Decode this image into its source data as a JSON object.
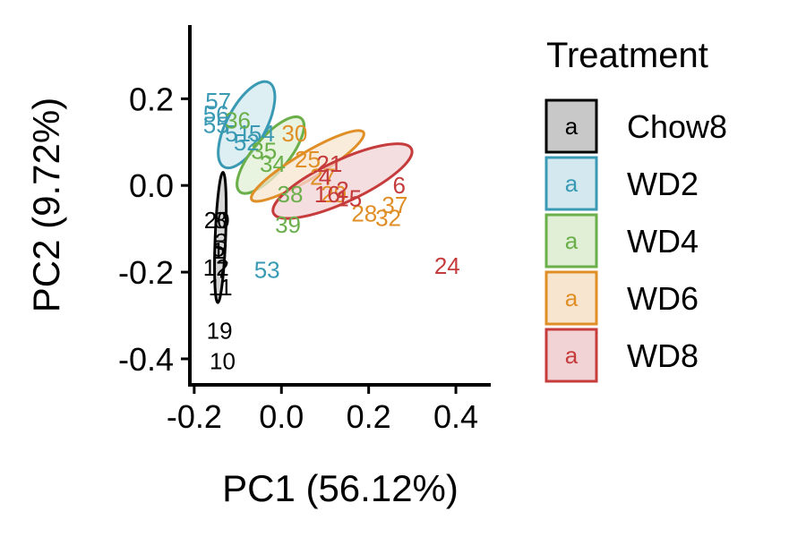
{
  "chart_data": {
    "type": "scatter",
    "title": "",
    "xlabel": "PC1 (56.12%)",
    "ylabel": "PC2 (9.72%)",
    "xlim": [
      -0.21,
      0.48
    ],
    "ylim": [
      -0.46,
      0.37
    ],
    "x_ticks": [
      -0.2,
      0.0,
      0.2,
      0.4
    ],
    "x_tick_labels": [
      "-0.2",
      "0.0",
      "0.2",
      "0.4"
    ],
    "y_ticks": [
      -0.4,
      -0.2,
      0.0,
      0.2
    ],
    "y_tick_labels": [
      "-0.4",
      "-0.2",
      "0.0",
      "0.2"
    ],
    "grid": false,
    "legend": {
      "title": "Treatment",
      "placement": "right",
      "key_glyph": "a"
    },
    "series": [
      {
        "name": "Chow8",
        "color": "#000000",
        "fill": "#c8c8c8",
        "ellipse": {
          "cx": -0.14,
          "cy": -0.12,
          "rx": 0.3,
          "ry": 0.012,
          "angle_deg": -87.7
        },
        "points": [
          {
            "label": "20",
            "x": -0.148,
            "y": -0.08
          },
          {
            "label": "8",
            "x": -0.14,
            "y": -0.08
          },
          {
            "label": "3",
            "x": -0.138,
            "y": -0.13
          },
          {
            "label": "5",
            "x": -0.144,
            "y": -0.145
          },
          {
            "label": "1",
            "x": -0.145,
            "y": -0.15
          },
          {
            "label": "12",
            "x": -0.15,
            "y": -0.19
          },
          {
            "label": "7",
            "x": -0.135,
            "y": -0.195
          },
          {
            "label": "11",
            "x": -0.14,
            "y": -0.235
          },
          {
            "label": "19",
            "x": -0.142,
            "y": -0.335
          },
          {
            "label": "10",
            "x": -0.135,
            "y": -0.405
          }
        ]
      },
      {
        "name": "WD2",
        "color": "#3a9ab4",
        "fill": "#d3e9ef",
        "ellipse": {
          "cx": -0.08,
          "cy": 0.14,
          "rx": 0.22,
          "ry": 0.045,
          "angle_deg": -62
        },
        "points": [
          {
            "label": "57",
            "x": -0.145,
            "y": 0.195
          },
          {
            "label": "56",
            "x": -0.15,
            "y": 0.165
          },
          {
            "label": "55",
            "x": -0.15,
            "y": 0.14
          },
          {
            "label": "51",
            "x": -0.1,
            "y": 0.12
          },
          {
            "label": "52",
            "x": -0.08,
            "y": 0.1
          },
          {
            "label": "54",
            "x": -0.045,
            "y": 0.12
          },
          {
            "label": "53",
            "x": -0.033,
            "y": -0.195
          }
        ]
      },
      {
        "name": "WD4",
        "color": "#6aaf4a",
        "fill": "#e0efd6",
        "ellipse": {
          "cx": -0.025,
          "cy": 0.07,
          "rx": 0.22,
          "ry": 0.04,
          "angle_deg": -50
        },
        "points": [
          {
            "label": "36",
            "x": -0.1,
            "y": 0.15
          },
          {
            "label": "35",
            "x": -0.04,
            "y": 0.08
          },
          {
            "label": "34",
            "x": -0.02,
            "y": 0.05
          },
          {
            "label": "38",
            "x": 0.02,
            "y": -0.02
          },
          {
            "label": "39",
            "x": 0.015,
            "y": -0.09
          }
        ]
      },
      {
        "name": "WD6",
        "color": "#e08e26",
        "fill": "#f7e5cf",
        "ellipse": {
          "cx": 0.06,
          "cy": 0.045,
          "rx": 0.3,
          "ry": 0.03,
          "angle_deg": -31
        },
        "points": [
          {
            "label": "30",
            "x": 0.03,
            "y": 0.12
          },
          {
            "label": "25",
            "x": 0.06,
            "y": 0.06
          },
          {
            "label": "27",
            "x": 0.095,
            "y": 0.02
          },
          {
            "label": "29",
            "x": 0.12,
            "y": -0.02
          },
          {
            "label": "28",
            "x": 0.19,
            "y": -0.065
          },
          {
            "label": "32",
            "x": 0.245,
            "y": -0.075
          },
          {
            "label": "37",
            "x": 0.26,
            "y": -0.045
          }
        ]
      },
      {
        "name": "WD8",
        "color": "#c63c3c",
        "fill": "#f1d3d5",
        "ellipse": {
          "cx": 0.14,
          "cy": 0.01,
          "rx": 0.35,
          "ry": 0.048,
          "angle_deg": -25
        },
        "points": [
          {
            "label": "21",
            "x": 0.11,
            "y": 0.05
          },
          {
            "label": "4",
            "x": 0.1,
            "y": 0.02
          },
          {
            "label": "2",
            "x": 0.14,
            "y": -0.01
          },
          {
            "label": "15",
            "x": 0.155,
            "y": -0.03
          },
          {
            "label": "16",
            "x": 0.105,
            "y": -0.02
          },
          {
            "label": "6",
            "x": 0.27,
            "y": 0.0
          },
          {
            "label": "24",
            "x": 0.38,
            "y": -0.185
          }
        ]
      }
    ]
  }
}
